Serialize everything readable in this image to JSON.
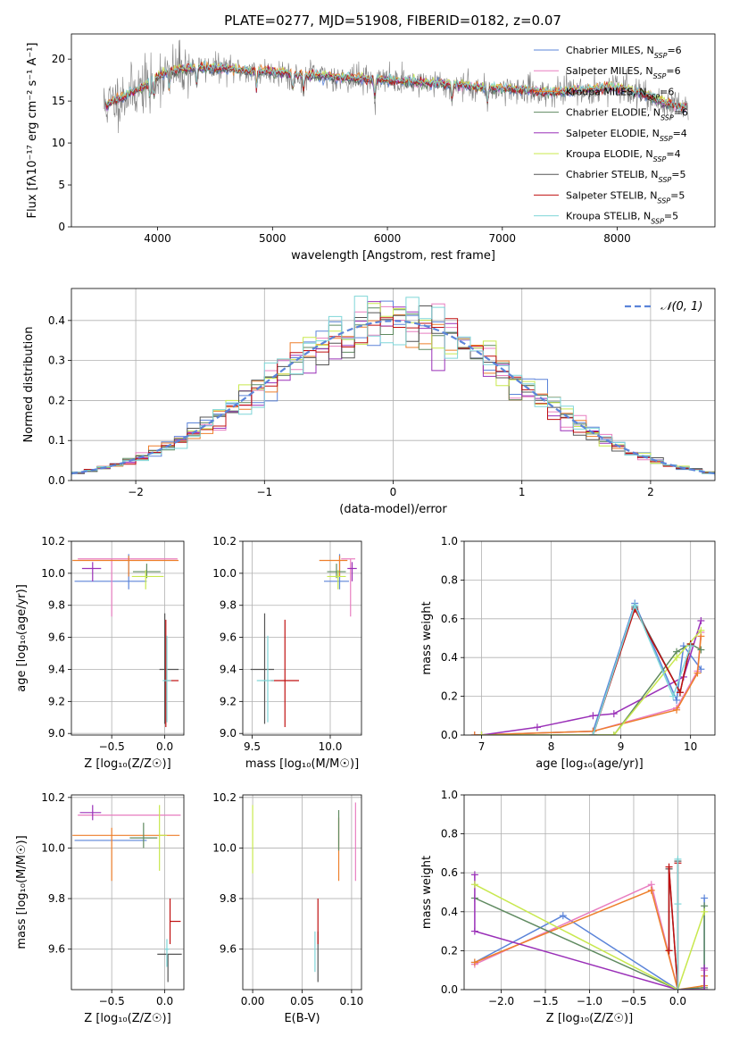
{
  "figure_title": "PLATE=0277, MJD=51908, FIBERID=0182, z=0.07",
  "colors": {
    "Chabrier MILES": "#5b84d9",
    "Salpeter MILES": "#e87ec0",
    "Kroupa MILES": "#ee7f2b",
    "Chabrier ELODIE": "#5f8a60",
    "Salpeter ELODIE": "#9a30b8",
    "Kroupa ELODIE": "#c8e84e",
    "Chabrier STELIB": "#555555",
    "Salpeter STELIB": "#c01010",
    "Kroupa STELIB": "#7fd6d8",
    "data": "#808080",
    "normal": "#5b84d9"
  },
  "legend_items": [
    {
      "name": "Chabrier MILES",
      "nssp": "6"
    },
    {
      "name": "Salpeter MILES",
      "nssp": "6"
    },
    {
      "name": "Kroupa MILES",
      "nssp": "6"
    },
    {
      "name": "Chabrier ELODIE",
      "nssp": "6"
    },
    {
      "name": "Salpeter ELODIE",
      "nssp": "4"
    },
    {
      "name": "Kroupa ELODIE",
      "nssp": "4"
    },
    {
      "name": "Chabrier STELIB",
      "nssp": "5"
    },
    {
      "name": "Salpeter STELIB",
      "nssp": "5"
    },
    {
      "name": "Kroupa STELIB",
      "nssp": "5"
    }
  ],
  "chart_data": [
    {
      "id": "spectrum",
      "type": "line",
      "title": "PLATE=0277, MJD=51908, FIBERID=0182, z=0.07",
      "xlabel": "wavelength [Angstrom, rest frame]",
      "ylabel": "Flux [fλ10⁻¹⁷ erg cm⁻² s⁻¹ A⁻¹]",
      "xlim": [
        3250,
        8850
      ],
      "ylim": [
        0,
        23
      ],
      "xticks": [
        4000,
        5000,
        6000,
        7000,
        8000
      ],
      "yticks": [
        0,
        5,
        10,
        15,
        20
      ],
      "grid": false,
      "legend_position": "top-right",
      "continuum_x": [
        3550,
        3700,
        3850,
        4000,
        4100,
        4200,
        4400,
        4600,
        4800,
        5000,
        5200,
        5400,
        5600,
        5800,
        6000,
        6200,
        6400,
        6600,
        6800,
        7000,
        7200,
        7400,
        7600,
        7800,
        8000,
        8200,
        8400,
        8600
      ],
      "continuum_y": [
        14.5,
        15.5,
        16.5,
        18.0,
        18.5,
        18.8,
        19.0,
        18.9,
        18.6,
        18.5,
        18.2,
        18.0,
        17.8,
        17.6,
        17.5,
        17.3,
        17.1,
        17.0,
        16.6,
        16.5,
        16.3,
        16.0,
        16.2,
        16.4,
        16.6,
        16.0,
        14.8,
        14.2
      ]
    },
    {
      "id": "residuals",
      "type": "histogram",
      "xlabel": "(data-model)/error",
      "ylabel": "Normed distribution",
      "xlim": [
        -2.5,
        2.5
      ],
      "ylim": [
        0,
        0.48
      ],
      "xticks": [
        -2,
        -1,
        0,
        1,
        2
      ],
      "yticks": [
        0.0,
        0.1,
        0.2,
        0.3,
        0.4
      ],
      "grid": true,
      "legend_position": "top-right",
      "reference_label": "𝒩(0, 1)",
      "bin_width": 0.1
    },
    {
      "id": "age_vs_Z",
      "type": "errorbar",
      "xlabel": "Z [log₁₀(Z/Z☉)]",
      "ylabel": "age  [log₁₀(age/yr)]",
      "xlim": [
        -0.88,
        0.18
      ],
      "ylim": [
        8.99,
        10.2
      ],
      "xticks": [
        -0.5,
        0.0
      ],
      "yticks": [
        9.0,
        9.2,
        9.4,
        9.6,
        9.8,
        10.0,
        10.2
      ],
      "grid": true,
      "points": [
        {
          "series": "Chabrier MILES",
          "x": -0.34,
          "y": 9.95,
          "xerr": [
            0.51,
            0.17
          ],
          "yerr": [
            0.05,
            0.17
          ]
        },
        {
          "series": "Salpeter MILES",
          "x": -0.5,
          "y": 10.09,
          "xerr": [
            0.32,
            0.62
          ],
          "yerr": [
            0.36,
            0.0
          ]
        },
        {
          "series": "Kroupa MILES",
          "x": -0.34,
          "y": 10.08,
          "xerr": [
            0.53,
            0.47
          ],
          "yerr": [
            0.1,
            0.03
          ]
        },
        {
          "series": "Chabrier ELODIE",
          "x": -0.17,
          "y": 10.01,
          "xerr": [
            0.13,
            0.13
          ],
          "yerr": [
            0.04,
            0.05
          ]
        },
        {
          "series": "Salpeter ELODIE",
          "x": -0.68,
          "y": 10.03,
          "xerr": [
            0.1,
            0.08
          ],
          "yerr": [
            0.08,
            0.04
          ]
        },
        {
          "series": "Kroupa ELODIE",
          "x": -0.18,
          "y": 9.98,
          "xerr": [
            0.13,
            0.17
          ],
          "yerr": [
            0.08,
            0.04
          ]
        },
        {
          "series": "Chabrier STELIB",
          "x": 0.0,
          "y": 9.4,
          "xerr": [
            0.05,
            0.13
          ],
          "yerr": [
            0.34,
            0.35
          ]
        },
        {
          "series": "Salpeter STELIB",
          "x": 0.01,
          "y": 9.33,
          "xerr": [
            0.0,
            0.12
          ],
          "yerr": [
            0.29,
            0.38
          ]
        },
        {
          "series": "Kroupa STELIB",
          "x": 0.02,
          "y": 9.33,
          "xerr": [
            0.04,
            0.04
          ],
          "yerr": [
            0.26,
            0.28
          ]
        }
      ]
    },
    {
      "id": "age_vs_mass",
      "type": "errorbar",
      "xlabel": "mass [log₁₀(M/M☉)]",
      "ylabel": "",
      "xlim": [
        9.44,
        10.2
      ],
      "ylim": [
        8.99,
        10.2
      ],
      "xticks": [
        9.5,
        10.0
      ],
      "yticks": [
        9.0,
        9.2,
        9.4,
        9.6,
        9.8,
        10.0,
        10.2
      ],
      "grid": true,
      "points": [
        {
          "series": "Chabrier MILES",
          "x": 10.06,
          "y": 9.95,
          "xerr": [
            0.1,
            0.06
          ],
          "yerr": [
            0.05,
            0.17
          ]
        },
        {
          "series": "Salpeter MILES",
          "x": 10.13,
          "y": 10.09,
          "xerr": [
            0.06,
            0.03
          ],
          "yerr": [
            0.36,
            0.0
          ]
        },
        {
          "series": "Kroupa MILES",
          "x": 10.06,
          "y": 10.08,
          "xerr": [
            0.13,
            0.05
          ],
          "yerr": [
            0.1,
            0.03
          ]
        },
        {
          "series": "Chabrier ELODIE",
          "x": 10.04,
          "y": 10.01,
          "xerr": [
            0.06,
            0.06
          ],
          "yerr": [
            0.04,
            0.05
          ]
        },
        {
          "series": "Salpeter ELODIE",
          "x": 10.14,
          "y": 10.03,
          "xerr": [
            0.03,
            0.03
          ],
          "yerr": [
            0.08,
            0.04
          ]
        },
        {
          "series": "Kroupa ELODIE",
          "x": 10.05,
          "y": 9.98,
          "xerr": [
            0.07,
            0.05
          ],
          "yerr": [
            0.08,
            0.04
          ]
        },
        {
          "series": "Chabrier STELIB",
          "x": 9.58,
          "y": 9.4,
          "xerr": [
            0.09,
            0.06
          ],
          "yerr": [
            0.34,
            0.35
          ]
        },
        {
          "series": "Salpeter STELIB",
          "x": 9.71,
          "y": 9.33,
          "xerr": [
            0.09,
            0.09
          ],
          "yerr": [
            0.29,
            0.38
          ]
        },
        {
          "series": "Kroupa STELIB",
          "x": 9.6,
          "y": 9.33,
          "xerr": [
            0.07,
            0.04
          ],
          "yerr": [
            0.26,
            0.28
          ]
        }
      ]
    },
    {
      "id": "massweight_vs_age",
      "type": "line",
      "xlabel": "age  [log₁₀(age/yr)]",
      "ylabel": "mass weight",
      "xlim": [
        6.75,
        10.35
      ],
      "ylim": [
        0,
        1
      ],
      "xticks": [
        7,
        8,
        9,
        10
      ],
      "yticks": [
        0.0,
        0.2,
        0.4,
        0.6,
        0.8,
        1.0
      ],
      "grid": true,
      "series": [
        {
          "series": "Chabrier MILES",
          "x": [
            6.9,
            8.6,
            9.2,
            9.8,
            9.9,
            10.15
          ],
          "y": [
            0.0,
            0.02,
            0.68,
            0.18,
            0.46,
            0.34
          ]
        },
        {
          "series": "Salpeter MILES",
          "x": [
            6.9,
            8.6,
            9.8,
            10.1,
            10.15
          ],
          "y": [
            0.0,
            0.02,
            0.14,
            0.33,
            0.53
          ]
        },
        {
          "series": "Kroupa MILES",
          "x": [
            6.9,
            8.6,
            9.8,
            10.1,
            10.15
          ],
          "y": [
            0.0,
            0.02,
            0.13,
            0.32,
            0.51
          ]
        },
        {
          "series": "Chabrier ELODIE",
          "x": [
            7.0,
            8.9,
            9.8,
            10.0,
            10.15
          ],
          "y": [
            0.0,
            0.0,
            0.43,
            0.47,
            0.44
          ]
        },
        {
          "series": "Salpeter ELODIE",
          "x": [
            7.0,
            7.8,
            8.6,
            8.9,
            9.9,
            10.15
          ],
          "y": [
            0.0,
            0.04,
            0.1,
            0.11,
            0.3,
            0.59
          ]
        },
        {
          "series": "Kroupa ELODIE",
          "x": [
            7.0,
            8.9,
            9.8,
            10.15
          ],
          "y": [
            0.0,
            0.0,
            0.4,
            0.54
          ]
        },
        {
          "series": "Chabrier STELIB",
          "x": [
            8.6,
            9.2,
            9.85,
            10.0
          ],
          "y": [
            0.0,
            0.66,
            0.22,
            0.47
          ]
        },
        {
          "series": "Salpeter STELIB",
          "x": [
            8.6,
            9.2,
            9.85,
            10.0
          ],
          "y": [
            0.0,
            0.65,
            0.22,
            0.47
          ]
        },
        {
          "series": "Kroupa STELIB",
          "x": [
            8.6,
            9.2,
            9.75,
            10.0
          ],
          "y": [
            0.0,
            0.67,
            0.2,
            0.46
          ]
        }
      ]
    },
    {
      "id": "mass_vs_Z",
      "type": "errorbar",
      "xlabel": "Z [log₁₀(Z/Z☉)]",
      "ylabel": "mass [log₁₀(M/M☉)]",
      "xlim": [
        -0.88,
        0.18
      ],
      "ylim": [
        9.44,
        10.21
      ],
      "xticks": [
        -0.5,
        0.0
      ],
      "yticks": [
        9.6,
        9.8,
        10.0,
        10.2
      ],
      "grid": true,
      "points": [
        {
          "series": "Chabrier MILES",
          "x": -0.34,
          "y": 10.03,
          "xerr": [
            0.51,
            0.17
          ],
          "yerr": [
            0.0,
            0.0
          ]
        },
        {
          "series": "Salpeter MILES",
          "x": -0.5,
          "y": 10.13,
          "xerr": [
            0.32,
            0.65
          ],
          "yerr": [
            0.0,
            0.0
          ]
        },
        {
          "series": "Kroupa MILES",
          "x": -0.5,
          "y": 10.05,
          "xerr": [
            0.37,
            0.64
          ],
          "yerr": [
            0.18,
            0.03
          ]
        },
        {
          "series": "Chabrier ELODIE",
          "x": -0.2,
          "y": 10.04,
          "xerr": [
            0.13,
            0.13
          ],
          "yerr": [
            0.04,
            0.06
          ]
        },
        {
          "series": "Salpeter ELODIE",
          "x": -0.68,
          "y": 10.14,
          "xerr": [
            0.12,
            0.08
          ],
          "yerr": [
            0.03,
            0.03
          ]
        },
        {
          "series": "Kroupa ELODIE",
          "x": -0.05,
          "y": 10.05,
          "xerr": [
            0.0,
            0.07
          ],
          "yerr": [
            0.14,
            0.12
          ]
        },
        {
          "series": "Chabrier STELIB",
          "x": 0.03,
          "y": 9.58,
          "xerr": [
            0.1,
            0.13
          ],
          "yerr": [
            0.11,
            0.0
          ]
        },
        {
          "series": "Salpeter STELIB",
          "x": 0.05,
          "y": 9.71,
          "xerr": [
            0.0,
            0.1
          ],
          "yerr": [
            0.09,
            0.09
          ]
        },
        {
          "series": "Kroupa STELIB",
          "x": 0.02,
          "y": 9.6,
          "xerr": [
            0.02,
            0.02
          ],
          "yerr": [
            0.07,
            0.04
          ]
        }
      ]
    },
    {
      "id": "mass_vs_EBV",
      "type": "errorbar",
      "xlabel": "E(B-V)",
      "ylabel": "",
      "xlim": [
        -0.01,
        0.11
      ],
      "ylim": [
        9.44,
        10.21
      ],
      "xticks": [
        0.0,
        0.05,
        0.1
      ],
      "yticks": [
        9.6,
        9.8,
        10.0,
        10.2
      ],
      "grid": true,
      "points": [
        {
          "series": "Kroupa MILES",
          "x": 0.087,
          "y": 10.05,
          "xerr": [
            0,
            0
          ],
          "yerr": [
            0.18,
            0.07
          ]
        },
        {
          "series": "Chabrier ELODIE",
          "x": 0.087,
          "y": 10.04,
          "xerr": [
            0,
            0
          ],
          "yerr": [
            0.05,
            0.11
          ]
        },
        {
          "series": "Kroupa ELODIE",
          "x": 0.0,
          "y": 10.05,
          "xerr": [
            0,
            0
          ],
          "yerr": [
            0.15,
            0.12
          ]
        },
        {
          "series": "Salpeter MILES",
          "x": 0.104,
          "y": 10.03,
          "xerr": [
            0,
            0
          ],
          "yerr": [
            0.16,
            0.15
          ]
        },
        {
          "series": "Chabrier STELIB",
          "x": 0.066,
          "y": 9.58,
          "xerr": [
            0,
            0
          ],
          "yerr": [
            0.11,
            0.09
          ]
        },
        {
          "series": "Salpeter STELIB",
          "x": 0.066,
          "y": 9.71,
          "xerr": [
            0,
            0
          ],
          "yerr": [
            0.09,
            0.09
          ]
        },
        {
          "series": "Kroupa STELIB",
          "x": 0.063,
          "y": 9.59,
          "xerr": [
            0,
            0
          ],
          "yerr": [
            0.08,
            0.08
          ]
        }
      ]
    },
    {
      "id": "massweight_vs_Z",
      "type": "line",
      "xlabel": "Z [log₁₀(Z/Z☉)]",
      "ylabel": "mass weight",
      "xlim": [
        -2.42,
        0.42
      ],
      "ylim": [
        0,
        1
      ],
      "xticks": [
        -2.0,
        -1.5,
        -1.0,
        -0.5,
        0.0
      ],
      "yticks": [
        0.0,
        0.2,
        0.4,
        0.6,
        0.8,
        1.0
      ],
      "grid": true,
      "series": [
        {
          "series": "Chabrier MILES",
          "x": [
            -2.3,
            -1.3,
            0.0,
            0.3,
            0.3
          ],
          "y": [
            0.14,
            0.38,
            0.0,
            0.0,
            0.47
          ]
        },
        {
          "series": "Salpeter MILES",
          "x": [
            -2.3,
            -0.3,
            0.0,
            0.3,
            0.3
          ],
          "y": [
            0.13,
            0.54,
            0.0,
            0.0,
            0.1
          ]
        },
        {
          "series": "Kroupa MILES",
          "x": [
            -2.3,
            -0.3,
            0.0,
            0.3,
            0.3
          ],
          "y": [
            0.14,
            0.51,
            0.0,
            0.02,
            0.07
          ]
        },
        {
          "series": "Chabrier ELODIE",
          "x": [
            -2.3,
            0.0,
            0.3,
            0.3
          ],
          "y": [
            0.47,
            0.0,
            0.01,
            0.43
          ]
        },
        {
          "series": "Salpeter ELODIE",
          "x": [
            -2.3,
            -2.3,
            0.0,
            0.3,
            0.3
          ],
          "y": [
            0.59,
            0.3,
            0.0,
            0.0,
            0.11
          ]
        },
        {
          "series": "Kroupa ELODIE",
          "x": [
            -2.3,
            0.0,
            0.3
          ],
          "y": [
            0.54,
            0.0,
            0.4
          ]
        },
        {
          "series": "Chabrier STELIB",
          "x": [
            -0.1,
            -0.1,
            0.0,
            0.0
          ],
          "y": [
            0.2,
            0.62,
            0.0,
            0.66
          ]
        },
        {
          "series": "Salpeter STELIB",
          "x": [
            -0.1,
            -0.1,
            0.0,
            0.0
          ],
          "y": [
            0.2,
            0.63,
            0.0,
            0.65
          ]
        },
        {
          "series": "Kroupa STELIB",
          "x": [
            0.0,
            0.0,
            0.0
          ],
          "y": [
            0.0,
            0.67,
            0.44
          ]
        }
      ]
    }
  ]
}
